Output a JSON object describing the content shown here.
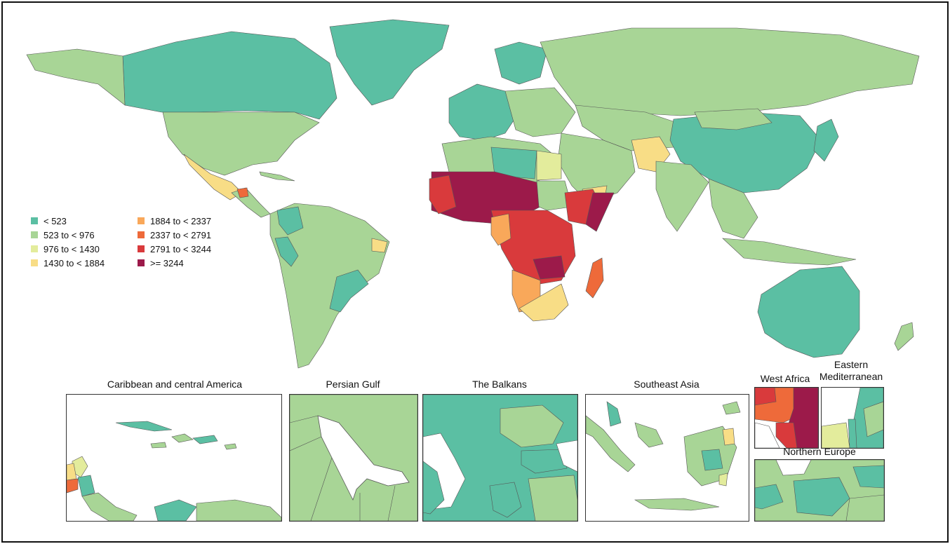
{
  "colors": {
    "c1": "#5bbfa3",
    "c2": "#a8d596",
    "c3": "#e3ec9c",
    "c4": "#f8dd86",
    "c5": "#f9a85a",
    "c6": "#ee6a3a",
    "c7": "#d93a3c",
    "c8": "#9c1a4a",
    "border": "#555555",
    "frame": "#111111"
  },
  "legend": {
    "items": [
      {
        "label": "< 523",
        "color": "#5bbfa3"
      },
      {
        "label": "523 to < 976",
        "color": "#a8d596"
      },
      {
        "label": "976 to < 1430",
        "color": "#e3ec9c"
      },
      {
        "label": "1430 to < 1884",
        "color": "#f8dd86"
      },
      {
        "label": "1884 to < 2337",
        "color": "#f9a85a"
      },
      {
        "label": "2337 to < 2791",
        "color": "#ee6a3a"
      },
      {
        "label": "2791 to < 3244",
        "color": "#d93a3c"
      },
      {
        "label": ">= 3244",
        "color": "#9c1a4a"
      }
    ]
  },
  "insets": {
    "caribbean": {
      "title": "Caribbean and central America"
    },
    "persian_gulf": {
      "title": "Persian Gulf"
    },
    "balkans": {
      "title": "The Balkans"
    },
    "southeast_asia": {
      "title": "Southeast Asia"
    },
    "west_africa": {
      "title": "West Africa"
    },
    "eastern_med": {
      "title_line1": "Eastern",
      "title_line2": "Mediterranean"
    },
    "northern_europe": {
      "title": "Northern Europe"
    }
  }
}
